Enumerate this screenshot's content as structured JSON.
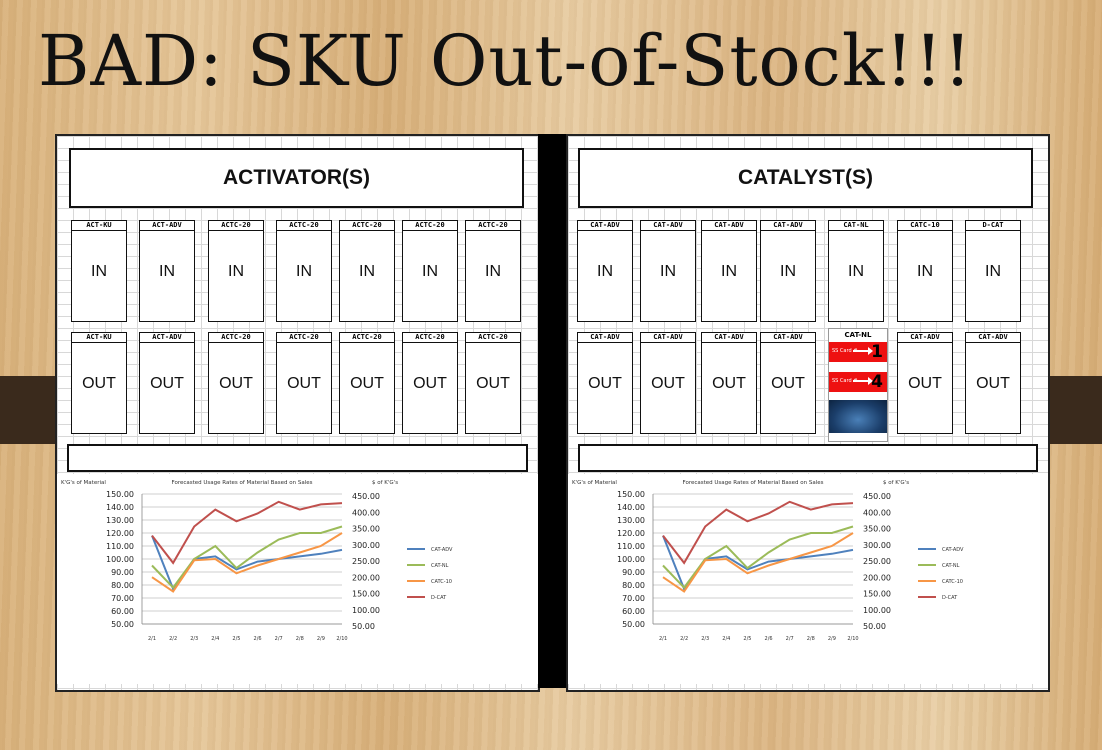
{
  "slide": {
    "title": "BAD: SKU Out-of-Stock!!!"
  },
  "activators": {
    "header": "ACTIVATOR(S)",
    "row_in": [
      {
        "sku": "ACT-KU",
        "status": "IN"
      },
      {
        "sku": "ACT-ADV",
        "status": "IN"
      },
      {
        "sku": "ACTC-20",
        "status": "IN"
      },
      {
        "sku": "ACTC-20",
        "status": "IN"
      },
      {
        "sku": "ACTC-20",
        "status": "IN"
      },
      {
        "sku": "ACTC-20",
        "status": "IN"
      },
      {
        "sku": "ACTC-20",
        "status": "IN"
      }
    ],
    "row_out": [
      {
        "sku": "ACT-KU",
        "status": "OUT"
      },
      {
        "sku": "ACT-ADV",
        "status": "OUT"
      },
      {
        "sku": "ACTC-20",
        "status": "OUT"
      },
      {
        "sku": "ACTC-20",
        "status": "OUT"
      },
      {
        "sku": "ACTC-20",
        "status": "OUT"
      },
      {
        "sku": "ACTC-20",
        "status": "OUT"
      },
      {
        "sku": "ACTC-20",
        "status": "OUT"
      }
    ]
  },
  "catalysts": {
    "header": "CATALYST(S)",
    "row_in": [
      {
        "sku": "CAT-ADV",
        "status": "IN"
      },
      {
        "sku": "CAT-ADV",
        "status": "IN"
      },
      {
        "sku": "CAT-ADV",
        "status": "IN"
      },
      {
        "sku": "CAT-ADV",
        "status": "IN"
      },
      {
        "sku": "CAT-NL",
        "status": "IN"
      },
      {
        "sku": "CATC-10",
        "status": "IN"
      },
      {
        "sku": "D-CAT",
        "status": "IN"
      }
    ],
    "row_out": [
      {
        "sku": "CAT-ADV",
        "status": "OUT"
      },
      {
        "sku": "CAT-ADV",
        "status": "OUT"
      },
      {
        "sku": "CAT-ADV",
        "status": "OUT"
      },
      {
        "sku": "CAT-ADV",
        "status": "OUT"
      },
      {
        "sku": "CAT-NL",
        "status": "special"
      },
      {
        "sku": "CAT-ADV",
        "status": "OUT"
      },
      {
        "sku": "CAT-ADV",
        "status": "OUT"
      }
    ],
    "special_card": {
      "label": "CAT-NL",
      "ss1_text": "SS Card #",
      "ss1_num": "1",
      "ss2_text": "SS Card #",
      "ss2_num": "4"
    }
  },
  "chart_data": [
    {
      "type": "line",
      "title": "Forecasted Usage Rates of Material Based on Sales",
      "ylabel": "K'G's of Material",
      "y2label": "$ of K'G's",
      "ylim": [
        50,
        150
      ],
      "y2lim": [
        50,
        450
      ],
      "yticks": [
        "150.00",
        "140.00",
        "130.00",
        "120.00",
        "110.00",
        "100.00",
        "90.00",
        "80.00",
        "70.00",
        "60.00",
        "50.00"
      ],
      "y2ticks": [
        "450.00",
        "400.00",
        "350.00",
        "300.00",
        "250.00",
        "200.00",
        "150.00",
        "100.00",
        "50.00"
      ],
      "categories": [
        "2/1",
        "2/2",
        "2/3",
        "2/4",
        "2/5",
        "2/6",
        "2/7",
        "2/8",
        "2/9",
        "2/10"
      ],
      "series": [
        {
          "name": "CAT-ADV",
          "color": "#4f81bd",
          "values": [
            118,
            77,
            100,
            102,
            92,
            98,
            100,
            102,
            104,
            107
          ]
        },
        {
          "name": "CAT-NL",
          "color": "#9bbb59",
          "values": [
            95,
            78,
            100,
            110,
            93,
            105,
            115,
            120,
            120,
            125
          ]
        },
        {
          "name": "CATC-10",
          "color": "#f79646",
          "values": [
            86,
            75,
            99,
            100,
            89,
            95,
            100,
            105,
            110,
            120
          ]
        },
        {
          "name": "D-CAT",
          "color": "#c0504d",
          "values": [
            118,
            97,
            125,
            138,
            129,
            135,
            144,
            138,
            142,
            143
          ]
        }
      ],
      "legend": "right",
      "grid": true
    },
    {
      "type": "line",
      "title": "Forecasted Usage Rates of Material Based on Sales",
      "ylabel": "K'G's of Material",
      "y2label": "$ of K'G's",
      "ylim": [
        50,
        150
      ],
      "y2lim": [
        50,
        450
      ],
      "yticks": [
        "150.00",
        "140.00",
        "130.00",
        "120.00",
        "110.00",
        "100.00",
        "90.00",
        "80.00",
        "70.00",
        "60.00",
        "50.00"
      ],
      "y2ticks": [
        "450.00",
        "400.00",
        "350.00",
        "300.00",
        "250.00",
        "200.00",
        "150.00",
        "100.00",
        "50.00"
      ],
      "categories": [
        "2/1",
        "2/2",
        "2/3",
        "2/4",
        "2/5",
        "2/6",
        "2/7",
        "2/8",
        "2/9",
        "2/10"
      ],
      "series": [
        {
          "name": "CAT-ADV",
          "color": "#4f81bd",
          "values": [
            118,
            77,
            100,
            102,
            92,
            98,
            100,
            102,
            104,
            107
          ]
        },
        {
          "name": "CAT-NL",
          "color": "#9bbb59",
          "values": [
            95,
            78,
            100,
            110,
            93,
            105,
            115,
            120,
            120,
            125
          ]
        },
        {
          "name": "CATC-10",
          "color": "#f79646",
          "values": [
            86,
            75,
            99,
            100,
            89,
            95,
            100,
            105,
            110,
            120
          ]
        },
        {
          "name": "D-CAT",
          "color": "#c0504d",
          "values": [
            118,
            97,
            125,
            138,
            129,
            135,
            144,
            138,
            142,
            143
          ]
        }
      ],
      "legend": "right",
      "grid": true
    }
  ]
}
